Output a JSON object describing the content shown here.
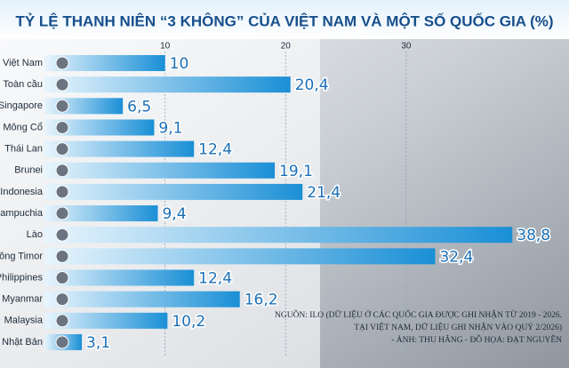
{
  "chart_data": {
    "type": "bar",
    "orientation": "horizontal",
    "title": "TỶ LỆ THANH NIÊN “3 KHÔNG” CỦA VIỆT NAM VÀ MỘT SỐ QUỐC GIA (%)",
    "categories": [
      "Việt Nam",
      "Toàn cầu",
      "Singapore",
      "Mông Cổ",
      "Thái Lan",
      "Brunei",
      "Indonesia",
      "Campuchia",
      "Lào",
      "Đông Timor",
      "Philippines",
      "Myanmar",
      "Malaysia",
      "Nhật Bản"
    ],
    "values": [
      10,
      20.4,
      6.5,
      9.1,
      12.4,
      19.1,
      21.4,
      9.4,
      38.8,
      32.4,
      12.4,
      16.2,
      10.2,
      3.1
    ],
    "value_labels": [
      "10",
      "20,4",
      "6,5",
      "9,1",
      "12,4",
      "19,1",
      "21,4",
      "9,4",
      "38,8",
      "32,4",
      "12,4",
      "16,2",
      "10,2",
      "3,1"
    ],
    "color": "#1a8fd6",
    "xlim": [
      0,
      43.5
    ],
    "xticks": [
      10,
      20,
      30
    ],
    "grid": true,
    "notes": [
      "NGUỒN: ILO (DỮ LIỆU Ở CÁC QUỐC GIA ĐƯỢC GHI NHẬN TỪ 2019 - 2026.",
      "TẠI VIỆT NAM, DỮ LIỆU GHI NHẬN VÀO QUÝ 2/2026)",
      "- ẢNH: THU HẰNG - ĐỒ HỌA: ĐẠT NGUYÊN"
    ]
  }
}
